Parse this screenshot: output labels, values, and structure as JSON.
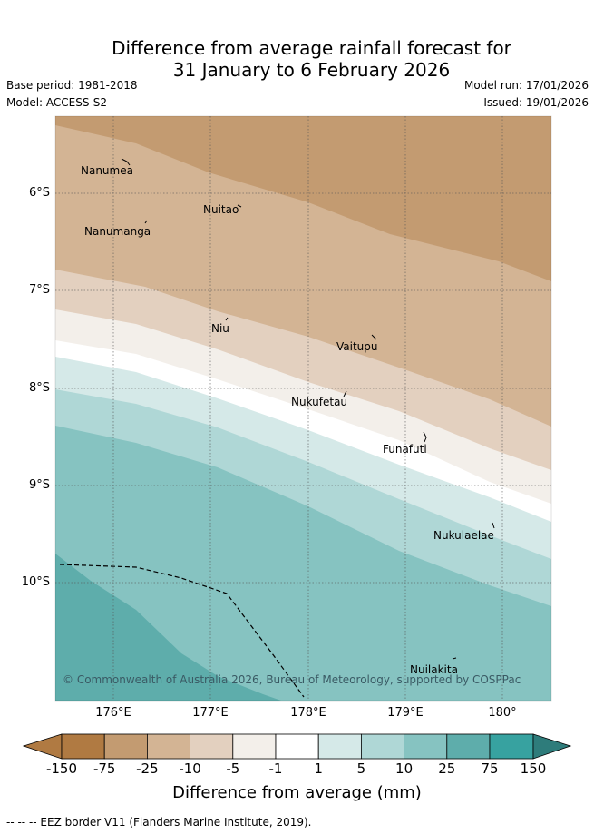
{
  "header": {
    "title_line1": "Difference from average rainfall forecast for",
    "title_line2": "31 January to 6 February 2026",
    "base_period": "Base period: 1981-2018",
    "model": "Model: ACCESS-S2",
    "model_run": "Model run: 17/01/2026",
    "issued": "Issued: 19/01/2026"
  },
  "map": {
    "latitude_labels": [
      "6°S",
      "7°S",
      "8°S",
      "9°S",
      "10°S"
    ],
    "longitude_labels": [
      "176°E",
      "177°E",
      "178°E",
      "179°E",
      "180°"
    ],
    "places": [
      "Nanumea",
      "Nuitao",
      "Nanumanga",
      "Niu",
      "Vaitupu",
      "Nukufetau",
      "Funafuti",
      "Nukulaelae",
      "Nuilakita"
    ],
    "copyright": "© Commonwealth of Australia 2026, Bureau of Meteorology, supported by COSPPac"
  },
  "colorbar": {
    "ticks": [
      "-150",
      "-75",
      "-25",
      "-10",
      "-5",
      "-1",
      "1",
      "5",
      "10",
      "25",
      "75",
      "150"
    ],
    "colors": [
      "#b07a42",
      "#c39b71",
      "#d3b494",
      "#e3d0bf",
      "#f3efea",
      "#ffffff",
      "#d5e9e8",
      "#afd7d6",
      "#86c3c1",
      "#5eadab",
      "#37a2a0"
    ],
    "end_low_color": "#b07a42",
    "end_high_color": "#2e7c7b",
    "label": "Difference from average (mm)"
  },
  "footer": {
    "legend_text": "--  --  -- EEZ border V11 (Flanders Marine Institute, 2019)."
  }
}
